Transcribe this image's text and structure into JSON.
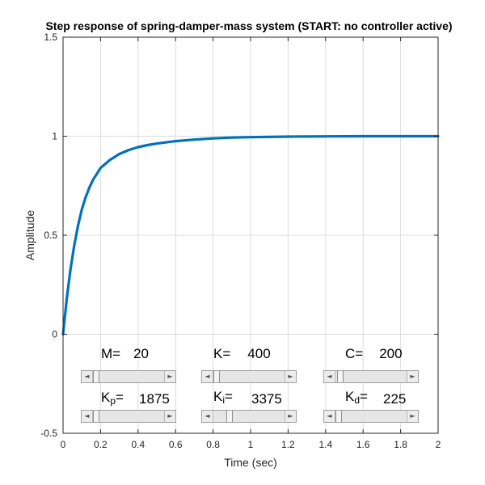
{
  "chart_data": {
    "type": "line",
    "title": "Step response of spring-damper-mass system (START: no controller active)",
    "xlabel": "Time (sec)",
    "ylabel": "Amplitude",
    "xlim": [
      0,
      2
    ],
    "ylim": [
      -0.5,
      1.5
    ],
    "xticks": [
      0,
      0.2,
      0.4,
      0.6,
      0.8,
      1,
      1.2,
      1.4,
      1.6,
      1.8,
      2
    ],
    "xtick_labels": [
      "0",
      "0.2",
      "0.4",
      "0.6",
      "0.8",
      "1",
      "1.2",
      "1.4",
      "1.6",
      "1.8",
      "2"
    ],
    "yticks": [
      -0.5,
      0,
      0.5,
      1,
      1.5
    ],
    "ytick_labels": [
      "-0.5",
      "0",
      "0.5",
      "1",
      "1.5"
    ],
    "grid": true,
    "series": [
      {
        "color": "#0072bd",
        "x": [
          0,
          0.02,
          0.04,
          0.06,
          0.08,
          0.1,
          0.12,
          0.14,
          0.16,
          0.18,
          0.2,
          0.25,
          0.3,
          0.35,
          0.4,
          0.45,
          0.5,
          0.6,
          0.7,
          0.8,
          0.9,
          1.0,
          1.2,
          1.4,
          1.6,
          1.8,
          2.0
        ],
        "y": [
          0,
          0.18,
          0.33,
          0.45,
          0.55,
          0.63,
          0.69,
          0.74,
          0.78,
          0.81,
          0.84,
          0.88,
          0.91,
          0.93,
          0.945,
          0.955,
          0.963,
          0.975,
          0.983,
          0.989,
          0.993,
          0.995,
          0.998,
          0.999,
          1.0,
          1.0,
          1.0
        ]
      }
    ]
  },
  "controls": {
    "m": {
      "name": "M=",
      "value": "20"
    },
    "k": {
      "name": "K=",
      "value": "400"
    },
    "c": {
      "name": "C=",
      "value": "200"
    },
    "kp": {
      "name": "K",
      "sub": "p",
      "eq": "=",
      "value": "1875"
    },
    "ki": {
      "name": "K",
      "sub": "i",
      "eq": "=",
      "value": "3375"
    },
    "kd": {
      "name": "K",
      "sub": "d",
      "eq": "=",
      "value": "225"
    }
  },
  "icons": {
    "left_arrow": "◄",
    "right_arrow": "►"
  },
  "slider_levels": {
    "m": 0.0,
    "k": 0.0,
    "c": 0.03,
    "kp": 0.0,
    "ki": 0.2,
    "kd": 0.0
  }
}
